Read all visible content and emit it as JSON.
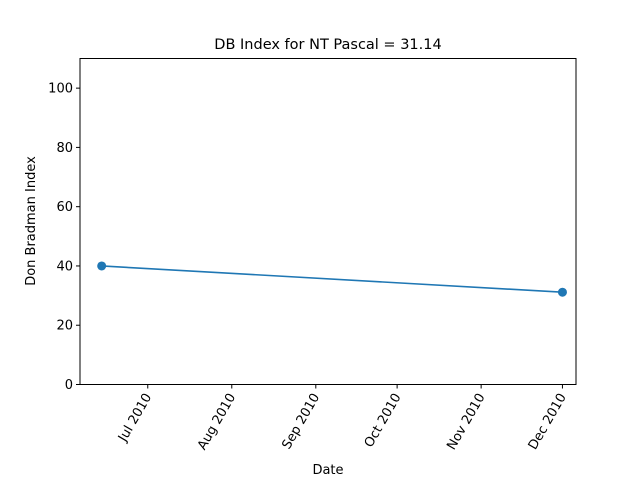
{
  "chart_data": {
    "type": "line",
    "title": "DB Index for NT Pascal = 31.14",
    "xlabel": "Date",
    "ylabel": "Don Bradman Index",
    "ylim": [
      0,
      110
    ],
    "yticks": [
      0,
      20,
      40,
      60,
      80,
      100
    ],
    "xlim": [
      "2010-06-06",
      "2010-12-06"
    ],
    "xticks": [
      {
        "date": "2010-07-01",
        "label": "Jul 2010"
      },
      {
        "date": "2010-08-01",
        "label": "Aug 2010"
      },
      {
        "date": "2010-09-01",
        "label": "Sep 2010"
      },
      {
        "date": "2010-10-01",
        "label": "Oct 2010"
      },
      {
        "date": "2010-11-01",
        "label": "Nov 2010"
      },
      {
        "date": "2010-12-01",
        "label": "Dec 2010"
      }
    ],
    "grid": false,
    "series": [
      {
        "color": "#1f77b4",
        "points": [
          {
            "x": "2010-06-14",
            "y": 40.0
          },
          {
            "x": "2010-12-01",
            "y": 31.14
          }
        ]
      }
    ]
  }
}
